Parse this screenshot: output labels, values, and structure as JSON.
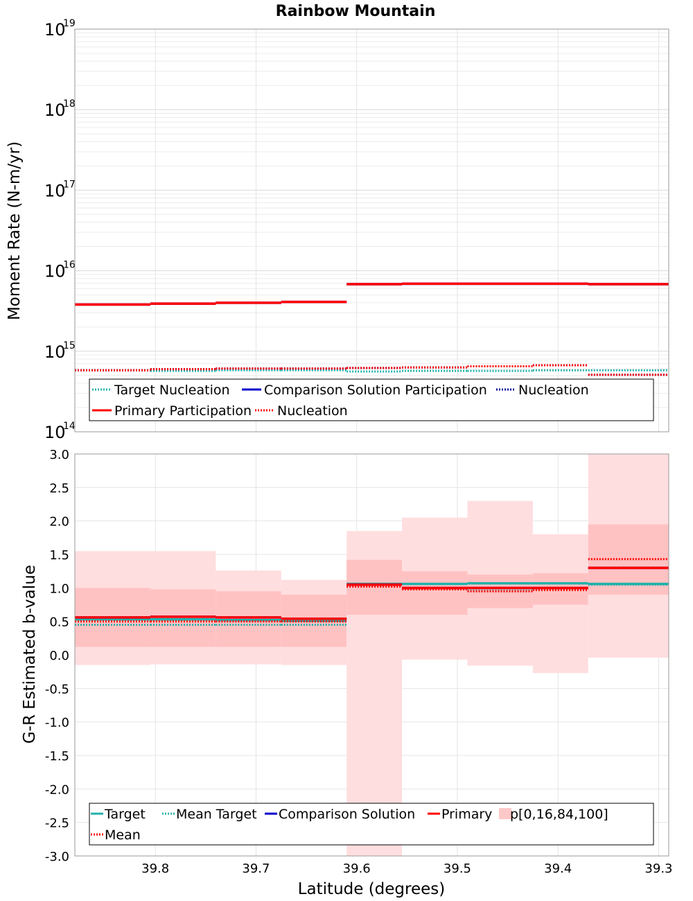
{
  "chart_data": [
    {
      "type": "line",
      "title": "Rainbow Mountain",
      "xlabel": "",
      "ylabel": "Moment Rate (N-m/yr)",
      "yscale": "log",
      "xlim": [
        39.88,
        39.29
      ],
      "ylim": [
        100000000000000.0,
        1e+19
      ],
      "grid": true,
      "legend_position": "bottom",
      "y_ticks": [
        {
          "base": "10",
          "exp": "14",
          "value": 100000000000000.0
        },
        {
          "base": "10",
          "exp": "15",
          "value": 1000000000000000.0
        },
        {
          "base": "10",
          "exp": "16",
          "value": 1e+16
        },
        {
          "base": "10",
          "exp": "17",
          "value": 1e+17
        },
        {
          "base": "10",
          "exp": "18",
          "value": 1e+18
        },
        {
          "base": "10",
          "exp": "19",
          "value": 1e+19
        }
      ],
      "x_edges": [
        39.88,
        39.805,
        39.74,
        39.675,
        39.61,
        39.555,
        39.49,
        39.425,
        39.37,
        39.29
      ],
      "series": [
        {
          "name": "Target Nucleation",
          "style": "dotted",
          "color": "#20b2aa",
          "values": [
            580000000000000.0,
            570000000000000.0,
            580000000000000.0,
            580000000000000.0,
            560000000000000.0,
            570000000000000.0,
            570000000000000.0,
            580000000000000.0,
            580000000000000.0
          ]
        },
        {
          "name": "Comparison Solution Participation",
          "style": "solid",
          "color": "#0000cc",
          "values": [
            3800000000000000.0,
            3900000000000000.0,
            4000000000000000.0,
            4100000000000000.0,
            6800000000000000.0,
            6900000000000000.0,
            6900000000000000.0,
            6900000000000000.0,
            6800000000000000.0
          ]
        },
        {
          "name": "Nucleation",
          "style": "dotted",
          "color": "#000099",
          "values": [
            580000000000000.0,
            600000000000000.0,
            610000000000000.0,
            610000000000000.0,
            620000000000000.0,
            630000000000000.0,
            650000000000000.0,
            670000000000000.0,
            510000000000000.0
          ]
        },
        {
          "name": "Primary Participation",
          "style": "solid",
          "color": "#ff0000",
          "values": [
            3800000000000000.0,
            3900000000000000.0,
            4000000000000000.0,
            4100000000000000.0,
            6800000000000000.0,
            6900000000000000.0,
            6900000000000000.0,
            6900000000000000.0,
            6800000000000000.0
          ]
        },
        {
          "name": "Nucleation",
          "style": "dotted",
          "color": "#ff0000",
          "values": [
            580000000000000.0,
            600000000000000.0,
            610000000000000.0,
            610000000000000.0,
            620000000000000.0,
            630000000000000.0,
            650000000000000.0,
            670000000000000.0,
            510000000000000.0
          ]
        }
      ],
      "legend": [
        {
          "label": "Target Nucleation",
          "color": "#20b2aa",
          "style": "dotted",
          "row": 0
        },
        {
          "label": "Comparison Solution Participation",
          "color": "#0000cc",
          "style": "solid",
          "row": 0
        },
        {
          "label": "Nucleation",
          "color": "#000099",
          "style": "dotted",
          "row": 0
        },
        {
          "label": "Primary Participation",
          "color": "#ff0000",
          "style": "solid",
          "row": 1
        },
        {
          "label": "Nucleation",
          "color": "#ff0000",
          "style": "dotted",
          "row": 1
        }
      ]
    },
    {
      "type": "line",
      "title": "",
      "xlabel": "Latitude (degrees)",
      "ylabel": "G-R Estimated b-value",
      "xlim": [
        39.88,
        39.29
      ],
      "ylim": [
        -3.0,
        3.0
      ],
      "grid": true,
      "legend_position": "bottom",
      "x_ticks": [
        "39.8",
        "39.7",
        "39.6",
        "39.5",
        "39.4",
        "39.3"
      ],
      "x_tick_values": [
        39.8,
        39.7,
        39.6,
        39.5,
        39.4,
        39.3
      ],
      "y_ticks": [
        "3.0",
        "2.5",
        "2.0",
        "1.5",
        "1.0",
        "0.5",
        "0.0",
        "-0.5",
        "-1.0",
        "-1.5",
        "-2.0",
        "-2.5",
        "-3.0"
      ],
      "y_tick_values": [
        3.0,
        2.5,
        2.0,
        1.5,
        1.0,
        0.5,
        0.0,
        -0.5,
        -1.0,
        -1.5,
        -2.0,
        -2.5,
        -3.0
      ],
      "x_edges": [
        39.88,
        39.805,
        39.74,
        39.675,
        39.61,
        39.555,
        39.49,
        39.425,
        39.37,
        39.29
      ],
      "percentile_bands": {
        "name": "p[0,16,84,100]",
        "p0": [
          -0.15,
          -0.14,
          -0.14,
          -0.15,
          -3.0,
          -0.07,
          -0.16,
          -0.27,
          -0.04
        ],
        "p16": [
          0.12,
          0.12,
          0.12,
          0.12,
          0.6,
          0.6,
          0.7,
          0.75,
          0.9
        ],
        "p84": [
          1.0,
          0.98,
          0.95,
          0.9,
          1.42,
          1.25,
          1.2,
          1.22,
          1.95
        ],
        "p100": [
          1.55,
          1.55,
          1.26,
          1.12,
          1.85,
          2.05,
          2.3,
          1.8,
          3.0
        ]
      },
      "series": [
        {
          "name": "Target",
          "style": "solid",
          "color": "#20b2aa",
          "values": [
            0.53,
            0.53,
            0.52,
            0.51,
            1.06,
            1.06,
            1.07,
            1.07,
            1.06
          ]
        },
        {
          "name": "Mean Target",
          "style": "dotted",
          "color": "#20b2aa",
          "values": [
            0.45,
            0.45,
            0.45,
            0.45,
            1.04,
            1.0,
            0.96,
            0.98,
            1.05
          ]
        },
        {
          "name": "Comparison Solution",
          "style": "solid",
          "color": "#0000cc",
          "values": [
            0.56,
            0.57,
            0.56,
            0.54,
            1.05,
            1.0,
            1.0,
            1.0,
            1.3
          ]
        },
        {
          "name": "Primary",
          "style": "solid",
          "color": "#ff0000",
          "values": [
            0.56,
            0.57,
            0.56,
            0.54,
            1.05,
            1.0,
            1.0,
            1.0,
            1.3
          ]
        },
        {
          "name": "Mean",
          "style": "dotted",
          "color": "#ff0000",
          "values": [
            0.5,
            0.5,
            0.5,
            0.5,
            1.02,
            0.98,
            0.95,
            0.97,
            1.43
          ]
        }
      ],
      "legend": [
        {
          "label": "Target",
          "color": "#20b2aa",
          "style": "solid",
          "row": 0
        },
        {
          "label": "Mean Target",
          "color": "#20b2aa",
          "style": "dotted",
          "row": 0
        },
        {
          "label": "Comparison Solution",
          "color": "#0000cc",
          "style": "solid",
          "row": 0
        },
        {
          "label": "Primary",
          "color": "#ff0000",
          "style": "solid",
          "row": 0
        },
        {
          "label": "p[0,16,84,100]",
          "color": "#ffc8c8",
          "style": "patch",
          "row": 0
        },
        {
          "label": "Mean",
          "color": "#ff0000",
          "style": "dotted",
          "row": 1
        }
      ]
    }
  ]
}
